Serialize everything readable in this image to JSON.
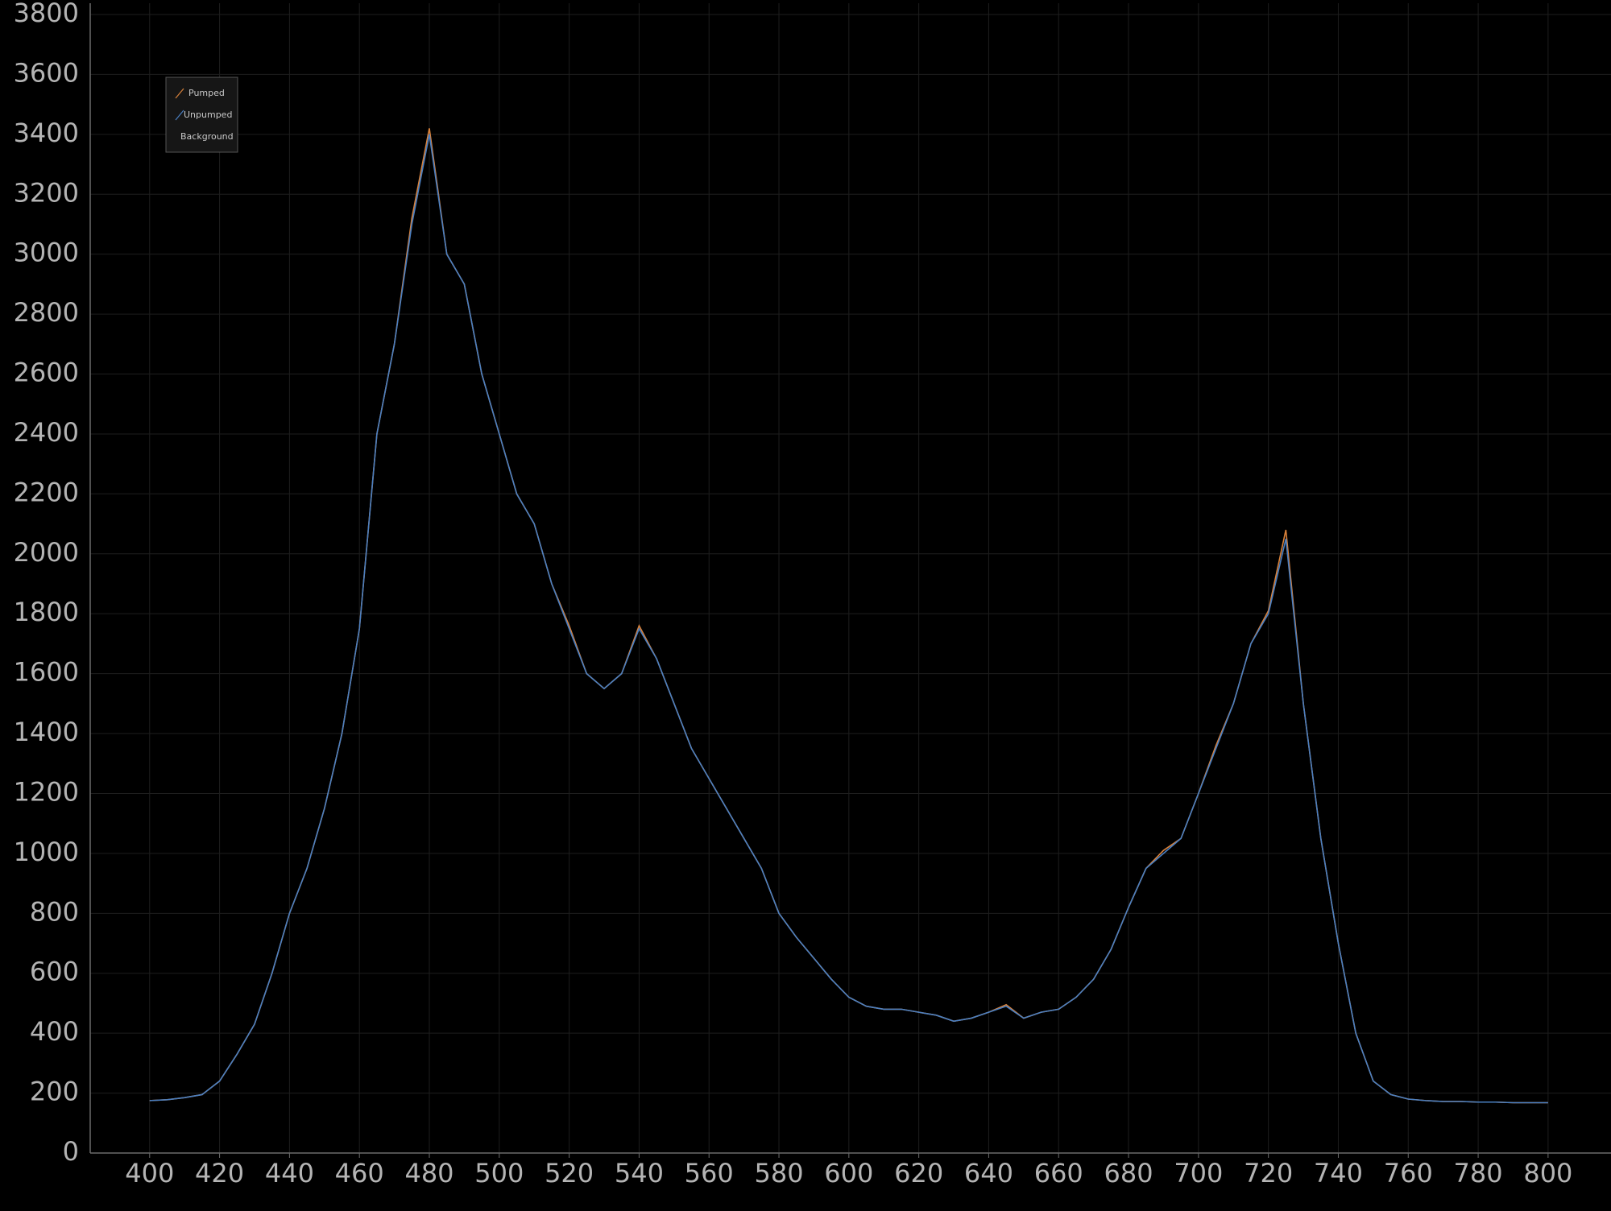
{
  "chart_data": {
    "type": "line",
    "x": [
      400,
      405,
      410,
      415,
      420,
      425,
      430,
      435,
      440,
      445,
      450,
      455,
      460,
      465,
      470,
      475,
      480,
      485,
      490,
      495,
      500,
      505,
      510,
      515,
      520,
      525,
      530,
      535,
      540,
      545,
      550,
      555,
      560,
      565,
      570,
      575,
      580,
      585,
      590,
      595,
      600,
      605,
      610,
      615,
      620,
      625,
      630,
      635,
      640,
      645,
      650,
      655,
      660,
      665,
      670,
      675,
      680,
      685,
      690,
      695,
      700,
      705,
      710,
      715,
      720,
      725,
      730,
      735,
      740,
      745,
      750,
      755,
      760,
      765,
      770,
      775,
      780,
      785,
      790,
      795,
      800
    ],
    "series": [
      {
        "name": "Pumped",
        "color": "#d9823b",
        "values": [
          175,
          178,
          185,
          195,
          240,
          330,
          430,
          600,
          800,
          950,
          1150,
          1400,
          1750,
          2400,
          2700,
          3120,
          3420,
          3000,
          2900,
          2600,
          2400,
          2200,
          2100,
          1900,
          1760,
          1600,
          1550,
          1600,
          1760,
          1650,
          1500,
          1350,
          1250,
          1150,
          1050,
          950,
          800,
          720,
          650,
          580,
          520,
          490,
          480,
          480,
          470,
          460,
          440,
          450,
          470,
          495,
          450,
          470,
          480,
          520,
          580,
          680,
          820,
          950,
          1010,
          1050,
          1200,
          1360,
          1500,
          1700,
          1810,
          2080,
          1500,
          1050,
          700,
          400,
          240,
          195,
          180,
          175,
          172,
          172,
          170,
          170,
          168,
          168,
          168
        ]
      },
      {
        "name": "Unpumped",
        "color": "#4a7fc1",
        "values": [
          175,
          178,
          185,
          195,
          240,
          330,
          430,
          600,
          800,
          950,
          1150,
          1400,
          1750,
          2400,
          2700,
          3100,
          3400,
          3000,
          2900,
          2600,
          2400,
          2200,
          2100,
          1900,
          1750,
          1600,
          1550,
          1600,
          1750,
          1650,
          1500,
          1350,
          1250,
          1150,
          1050,
          950,
          800,
          720,
          650,
          580,
          520,
          490,
          480,
          480,
          470,
          460,
          440,
          450,
          470,
          490,
          450,
          470,
          480,
          520,
          580,
          680,
          820,
          950,
          1000,
          1050,
          1200,
          1350,
          1500,
          1700,
          1800,
          2050,
          1500,
          1050,
          700,
          400,
          240,
          195,
          180,
          175,
          172,
          172,
          170,
          170,
          168,
          168,
          168
        ]
      },
      {
        "name": "Background",
        "color": "#888888",
        "values": [
          null,
          null,
          null,
          null,
          null,
          null,
          null,
          null,
          null,
          null,
          null,
          null,
          null,
          null,
          null,
          null,
          null,
          null,
          null,
          null,
          null,
          null,
          null,
          null,
          null,
          null,
          null,
          null,
          null,
          null,
          null,
          null,
          null,
          null,
          null,
          null,
          null,
          null,
          null,
          null,
          null,
          null,
          null,
          null,
          null,
          null,
          null,
          null,
          null,
          null,
          null,
          null,
          null,
          null,
          null,
          null,
          null,
          null,
          null,
          null,
          null,
          null,
          null,
          null,
          null,
          null,
          null,
          null,
          null,
          null,
          null,
          null,
          null,
          null,
          null,
          null,
          null,
          null,
          null,
          null,
          null
        ]
      }
    ],
    "xlim": [
      383,
      818
    ],
    "xticks": [
      400,
      420,
      440,
      460,
      480,
      500,
      520,
      540,
      560,
      580,
      600,
      620,
      640,
      660,
      680,
      700,
      720,
      740,
      760,
      780,
      800
    ],
    "ylim": [
      0,
      3800
    ],
    "yticks": [
      0,
      200,
      400,
      600,
      800,
      1000,
      1200,
      1400,
      1600,
      1800,
      2000,
      2200,
      2400,
      2600,
      2800,
      3000,
      3200,
      3400,
      3600,
      3800
    ],
    "grid": true
  }
}
